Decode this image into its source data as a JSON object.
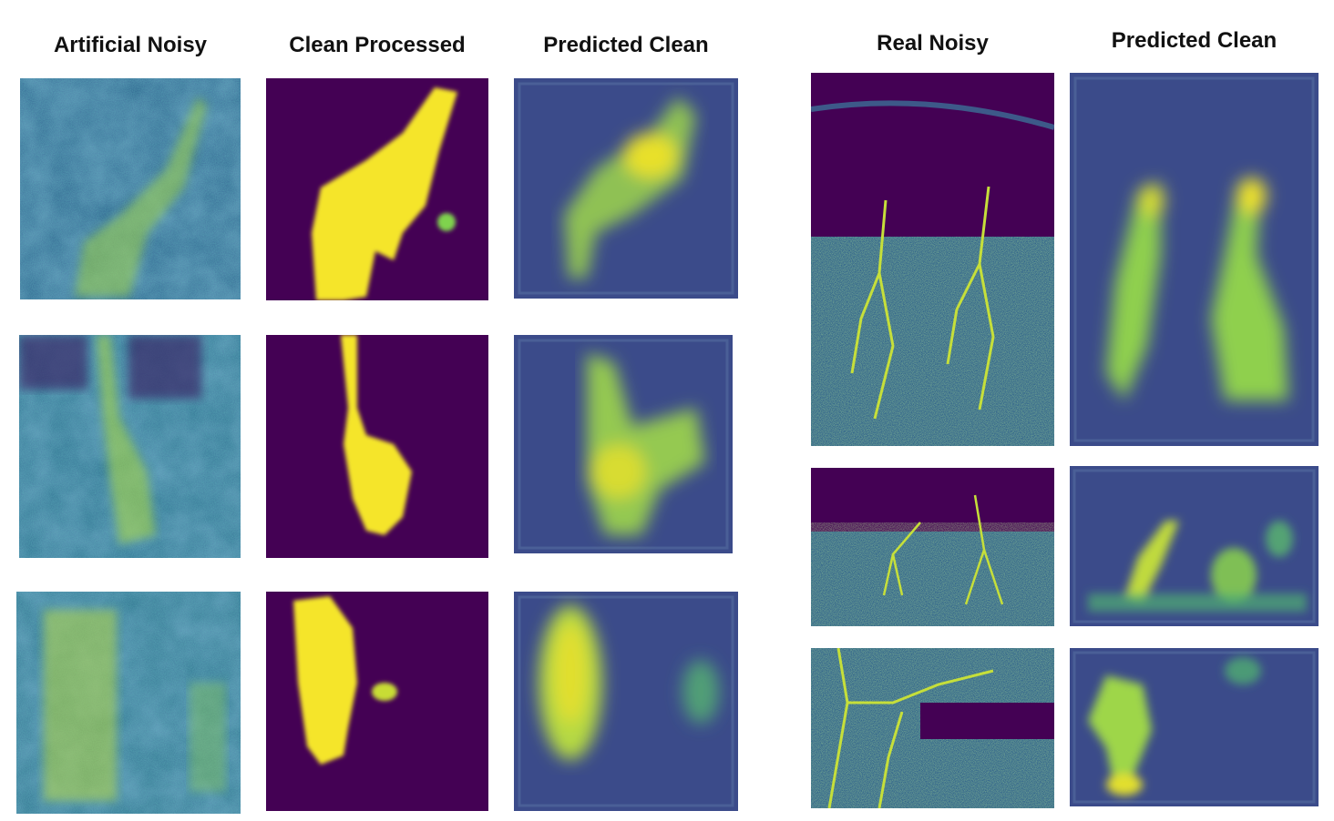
{
  "figure": {
    "left_titles": [
      "Artificial Noisy",
      "Clean Processed",
      "Predicted Clean"
    ],
    "right_titles": [
      "Real Noisy",
      "Predicted Clean"
    ]
  },
  "colormap": {
    "low": "#440154",
    "mid": "#21918c",
    "high": "#fde725"
  }
}
